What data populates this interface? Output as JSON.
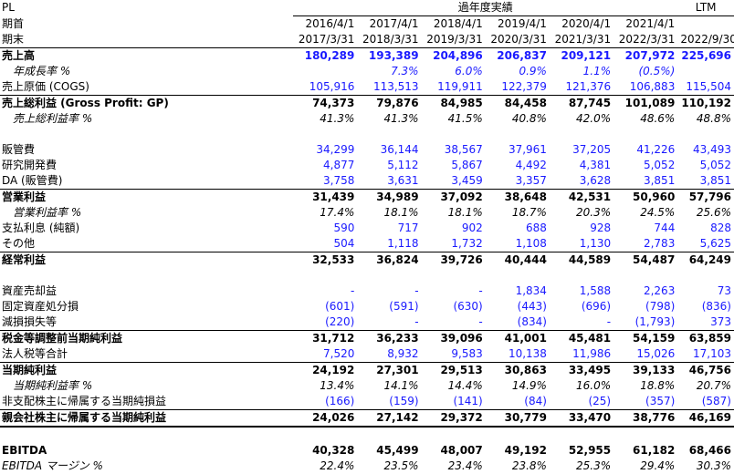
{
  "header": {
    "corner": "PL",
    "group_title": "過年度実績",
    "ltm": "LTM",
    "row_start_label": "期首",
    "row_end_label": "期末",
    "starts": [
      "2016/4/1",
      "2017/4/1",
      "2018/4/1",
      "2019/4/1",
      "2020/4/1",
      "2021/4/1"
    ],
    "ends": [
      "2017/3/31",
      "2018/3/31",
      "2019/3/31",
      "2020/3/31",
      "2021/3/31",
      "2022/3/31",
      "2022/9/30"
    ]
  },
  "rows": [
    {
      "label": "売上高",
      "values": [
        "180,289",
        "193,389",
        "204,896",
        "206,837",
        "209,121",
        "207,972",
        "225,696"
      ]
    },
    {
      "label": "年成長率 %",
      "values": [
        "",
        "7.3%",
        "6.0%",
        "0.9%",
        "1.1%",
        "(0.5%)",
        ""
      ]
    },
    {
      "label": "売上原価 (COGS)",
      "values": [
        "105,916",
        "113,513",
        "119,911",
        "122,379",
        "121,376",
        "106,883",
        "115,504"
      ]
    },
    {
      "label": "売上総利益 (Gross Profit: GP)",
      "values": [
        "74,373",
        "79,876",
        "84,985",
        "84,458",
        "87,745",
        "101,089",
        "110,192"
      ]
    },
    {
      "label": "売上総利益率 %",
      "values": [
        "41.3%",
        "41.3%",
        "41.5%",
        "40.8%",
        "42.0%",
        "48.6%",
        "48.8%"
      ]
    },
    {
      "label": "販管費",
      "values": [
        "34,299",
        "36,144",
        "38,567",
        "37,961",
        "37,205",
        "41,226",
        "43,493"
      ]
    },
    {
      "label": "研究開発費",
      "values": [
        "4,877",
        "5,112",
        "5,867",
        "4,492",
        "4,381",
        "5,052",
        "5,052"
      ]
    },
    {
      "label": "DA (販管費)",
      "values": [
        "3,758",
        "3,631",
        "3,459",
        "3,357",
        "3,628",
        "3,851",
        "3,851"
      ]
    },
    {
      "label": "営業利益",
      "values": [
        "31,439",
        "34,989",
        "37,092",
        "38,648",
        "42,531",
        "50,960",
        "57,796"
      ]
    },
    {
      "label": "営業利益率 %",
      "values": [
        "17.4%",
        "18.1%",
        "18.1%",
        "18.7%",
        "20.3%",
        "24.5%",
        "25.6%"
      ]
    },
    {
      "label": "支払利息 (純額)",
      "values": [
        "590",
        "717",
        "902",
        "688",
        "928",
        "744",
        "828"
      ]
    },
    {
      "label": "その他",
      "values": [
        "504",
        "1,118",
        "1,732",
        "1,108",
        "1,130",
        "2,783",
        "5,625"
      ]
    },
    {
      "label": "経常利益",
      "values": [
        "32,533",
        "36,824",
        "39,726",
        "40,444",
        "44,589",
        "54,487",
        "64,249"
      ]
    },
    {
      "label": "資産売却益",
      "values": [
        "-",
        "-",
        "-",
        "1,834",
        "1,588",
        "2,263",
        "73"
      ]
    },
    {
      "label": "固定資産処分損",
      "values": [
        "(601)",
        "(591)",
        "(630)",
        "(443)",
        "(696)",
        "(798)",
        "(836)"
      ]
    },
    {
      "label": "減損損失等",
      "values": [
        "(220)",
        "-",
        "-",
        "(834)",
        "-",
        "(1,793)",
        "373"
      ]
    },
    {
      "label": "税金等調整前当期純利益",
      "values": [
        "31,712",
        "36,233",
        "39,096",
        "41,001",
        "45,481",
        "54,159",
        "63,859"
      ]
    },
    {
      "label": "法人税等合計",
      "values": [
        "7,520",
        "8,932",
        "9,583",
        "10,138",
        "11,986",
        "15,026",
        "17,103"
      ]
    },
    {
      "label": "当期純利益",
      "values": [
        "24,192",
        "27,301",
        "29,513",
        "30,863",
        "33,495",
        "39,133",
        "46,756"
      ]
    },
    {
      "label": "当期純利益率 %",
      "values": [
        "13.4%",
        "14.1%",
        "14.4%",
        "14.9%",
        "16.0%",
        "18.8%",
        "20.7%"
      ]
    },
    {
      "label": "非支配株主に帰属する当期純損益",
      "values": [
        "(166)",
        "(159)",
        "(141)",
        "(84)",
        "(25)",
        "(357)",
        "(587)"
      ]
    },
    {
      "label": "親会社株主に帰属する当期純利益",
      "values": [
        "24,026",
        "27,142",
        "29,372",
        "30,779",
        "33,470",
        "38,776",
        "46,169"
      ]
    },
    {
      "label": "EBITDA",
      "values": [
        "40,328",
        "45,499",
        "48,007",
        "49,192",
        "52,955",
        "61,182",
        "68,466"
      ]
    },
    {
      "label": "EBITDA マージン %",
      "values": [
        "22.4%",
        "23.5%",
        "23.4%",
        "23.8%",
        "25.3%",
        "29.4%",
        "30.3%"
      ]
    }
  ]
}
